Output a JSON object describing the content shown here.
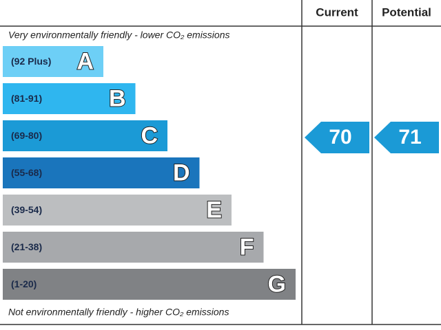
{
  "header": {
    "current": "Current",
    "potential": "Potential"
  },
  "top_note": "Very environmentally friendly - lower CO₂ emissions",
  "bottom_note": "Not environmentally friendly - higher CO₂ emissions",
  "bands": [
    {
      "range": "(92 Plus)",
      "letter": "A",
      "color": "#6dcff6"
    },
    {
      "range": "(81-91)",
      "letter": "B",
      "color": "#2fb6ef"
    },
    {
      "range": "(69-80)",
      "letter": "C",
      "color": "#1b9ad6"
    },
    {
      "range": "(55-68)",
      "letter": "D",
      "color": "#1a75bc"
    },
    {
      "range": "(39-54)",
      "letter": "E",
      "color": "#bcbec0"
    },
    {
      "range": "(21-38)",
      "letter": "F",
      "color": "#a7a9ac"
    },
    {
      "range": "(1-20)",
      "letter": "G",
      "color": "#808285"
    }
  ],
  "current": {
    "value": 70,
    "color": "#1b9ad6"
  },
  "potential": {
    "value": 71,
    "color": "#1b9ad6"
  }
}
